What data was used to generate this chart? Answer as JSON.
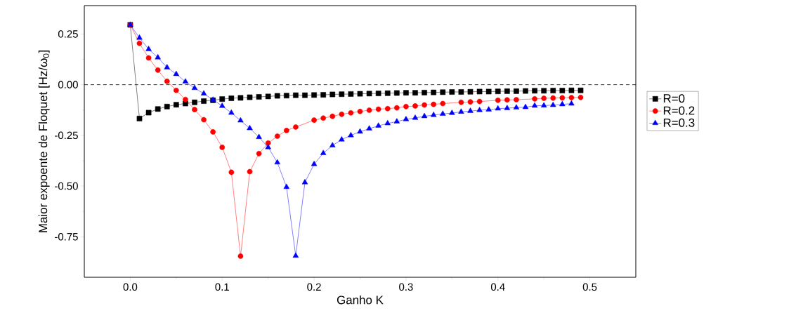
{
  "chart_data": {
    "type": "line",
    "xlabel": "Ganho K",
    "ylabel": "Maior expoente de Floquet [Hz/ω$_{0}$]",
    "xlim": [
      -0.05,
      0.55
    ],
    "ylim": [
      -0.95,
      0.39
    ],
    "xticks": [
      {
        "value": 0,
        "label": "0.0"
      },
      {
        "value": 0.1,
        "label": "0.1"
      },
      {
        "value": 0.2,
        "label": "0.2"
      },
      {
        "value": 0.3,
        "label": "0.3"
      },
      {
        "value": 0.4,
        "label": "0.4"
      },
      {
        "value": 0.5,
        "label": "0.5"
      }
    ],
    "yticks": [
      {
        "value": 0.25,
        "label": "0.25"
      },
      {
        "value": 0,
        "label": "0.00"
      },
      {
        "value": -0.25,
        "label": "-0.25"
      },
      {
        "value": -0.5,
        "label": "-0.50"
      },
      {
        "value": -0.75,
        "label": "-0.75"
      }
    ],
    "grid": false,
    "legend": "right",
    "ref_lines": [
      {
        "axis": "y",
        "value": 0,
        "color": "#000000",
        "line_style": "dashed"
      }
    ],
    "series": [
      {
        "name": "R=0",
        "color": "#000000",
        "marker": "square",
        "x": [
          0,
          0.01,
          0.02,
          0.03,
          0.04,
          0.05,
          0.06,
          0.07,
          0.08,
          0.09,
          0.1,
          0.11,
          0.12,
          0.13,
          0.14,
          0.15,
          0.16,
          0.17,
          0.18,
          0.19,
          0.2,
          0.21,
          0.22,
          0.23,
          0.24,
          0.25,
          0.26,
          0.27,
          0.28,
          0.29,
          0.3,
          0.31,
          0.32,
          0.33,
          0.34,
          0.35,
          0.36,
          0.37,
          0.38,
          0.39,
          0.4,
          0.41,
          0.42,
          0.43,
          0.44,
          0.45,
          0.46,
          0.47,
          0.48,
          0.49
        ],
        "values": [
          0.295,
          -0.167,
          -0.138,
          -0.12,
          -0.108,
          -0.099,
          -0.093,
          -0.087,
          -0.081,
          -0.077,
          -0.071,
          -0.067,
          -0.065,
          -0.062,
          -0.06,
          -0.058,
          -0.055,
          -0.054,
          -0.052,
          -0.052,
          -0.051,
          -0.05,
          -0.048,
          -0.047,
          -0.046,
          -0.045,
          -0.044,
          -0.043,
          -0.042,
          -0.041,
          -0.04,
          -0.04,
          -0.039,
          -0.038,
          -0.037,
          -0.036,
          -0.036,
          -0.035,
          -0.034,
          -0.034,
          -0.033,
          -0.032,
          -0.032,
          -0.031,
          -0.03,
          -0.03,
          -0.029,
          -0.029,
          -0.028,
          -0.028
        ]
      },
      {
        "name": "R=0.2",
        "color": "#ff0000",
        "marker": "circle",
        "x": [
          0,
          0.01,
          0.02,
          0.03,
          0.04,
          0.05,
          0.06,
          0.07,
          0.08,
          0.09,
          0.1,
          0.11,
          0.12,
          0.13,
          0.14,
          0.15,
          0.16,
          0.17,
          0.18,
          0.2,
          0.21,
          0.22,
          0.23,
          0.24,
          0.25,
          0.26,
          0.27,
          0.28,
          0.29,
          0.3,
          0.31,
          0.32,
          0.33,
          0.34,
          0.36,
          0.37,
          0.38,
          0.4,
          0.41,
          0.42,
          0.44,
          0.45,
          0.46,
          0.47,
          0.48,
          0.49
        ],
        "values": [
          0.295,
          0.204,
          0.132,
          0.072,
          0.017,
          -0.028,
          -0.073,
          -0.123,
          -0.173,
          -0.233,
          -0.309,
          -0.432,
          -0.846,
          -0.429,
          -0.34,
          -0.288,
          -0.254,
          -0.226,
          -0.209,
          -0.175,
          -0.165,
          -0.156,
          -0.146,
          -0.139,
          -0.132,
          -0.126,
          -0.121,
          -0.118,
          -0.114,
          -0.108,
          -0.105,
          -0.1,
          -0.097,
          -0.093,
          -0.087,
          -0.085,
          -0.083,
          -0.077,
          -0.075,
          -0.074,
          -0.07,
          -0.067,
          -0.066,
          -0.065,
          -0.064,
          -0.063
        ]
      },
      {
        "name": "R=0.3",
        "color": "#0000ff",
        "marker": "triangle",
        "x": [
          0,
          0.01,
          0.02,
          0.03,
          0.04,
          0.05,
          0.06,
          0.07,
          0.08,
          0.09,
          0.1,
          0.11,
          0.12,
          0.13,
          0.14,
          0.15,
          0.16,
          0.17,
          0.18,
          0.19,
          0.2,
          0.21,
          0.22,
          0.23,
          0.24,
          0.25,
          0.26,
          0.27,
          0.28,
          0.29,
          0.3,
          0.31,
          0.32,
          0.33,
          0.34,
          0.35,
          0.36,
          0.37,
          0.38,
          0.39,
          0.4,
          0.41,
          0.42,
          0.43,
          0.44,
          0.45,
          0.46,
          0.47,
          0.48
        ],
        "values": [
          0.295,
          0.231,
          0.175,
          0.134,
          0.085,
          0.052,
          0.015,
          -0.017,
          -0.044,
          -0.075,
          -0.105,
          -0.139,
          -0.177,
          -0.215,
          -0.259,
          -0.309,
          -0.384,
          -0.505,
          -0.844,
          -0.482,
          -0.392,
          -0.338,
          -0.3,
          -0.271,
          -0.25,
          -0.232,
          -0.217,
          -0.203,
          -0.191,
          -0.182,
          -0.171,
          -0.164,
          -0.156,
          -0.15,
          -0.144,
          -0.14,
          -0.134,
          -0.13,
          -0.126,
          -0.123,
          -0.118,
          -0.116,
          -0.113,
          -0.111,
          -0.104,
          -0.103,
          -0.101,
          -0.097,
          -0.094
        ]
      }
    ]
  }
}
